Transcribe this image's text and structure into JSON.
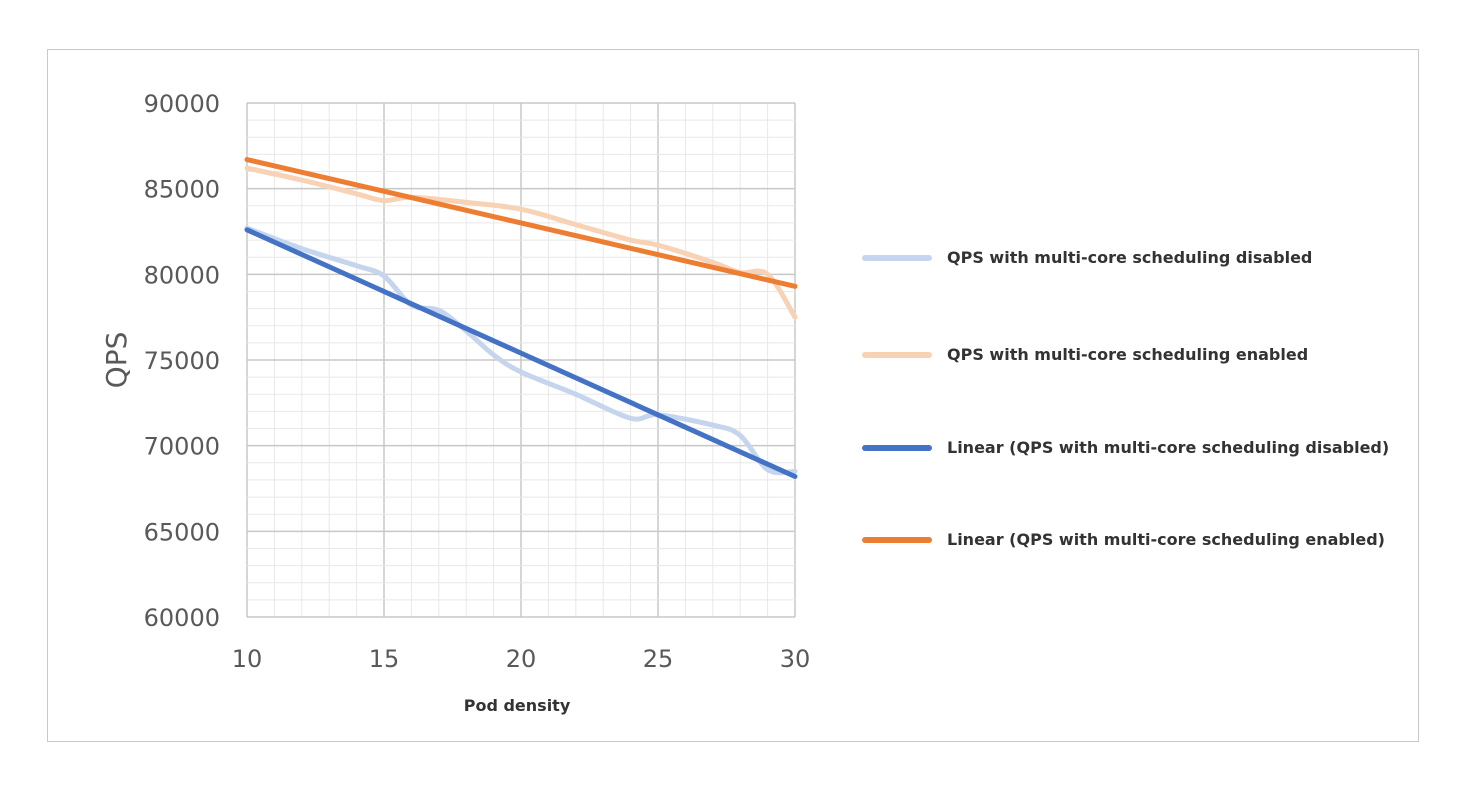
{
  "chart_data": {
    "type": "line",
    "title": "",
    "xlabel": "Pod density",
    "ylabel": "QPS",
    "xlim": [
      10,
      30
    ],
    "ylim": [
      60000,
      90000
    ],
    "x_ticks": [
      "10",
      "15",
      "20",
      "25",
      "30"
    ],
    "y_ticks": [
      "60000",
      "65000",
      "70000",
      "75000",
      "80000",
      "85000",
      "90000"
    ],
    "grid": true,
    "minor_grid": true,
    "legend_position": "right",
    "series": [
      {
        "name": "QPS with multi-core scheduling disabled",
        "color": "#c5d5ee",
        "x": [
          10,
          12,
          14,
          15,
          16,
          17,
          18,
          19,
          20,
          22,
          24,
          25,
          27,
          28,
          29,
          30
        ],
        "y": [
          82700,
          81500,
          80500,
          79900,
          78200,
          77900,
          76700,
          75300,
          74300,
          73000,
          71600,
          71800,
          71200,
          70600,
          68600,
          68500
        ]
      },
      {
        "name": "QPS with multi-core scheduling enabled",
        "color": "#f8d2b5",
        "x": [
          10,
          12,
          14,
          15,
          16,
          18,
          20,
          22,
          24,
          25,
          27,
          28,
          29,
          30
        ],
        "y": [
          86200,
          85500,
          84700,
          84300,
          84500,
          84200,
          83800,
          82900,
          82000,
          81700,
          80700,
          80100,
          80000,
          77500
        ]
      },
      {
        "name": "Linear (QPS with multi-core scheduling disabled)",
        "color": "#4472c4",
        "x": [
          10,
          30
        ],
        "y": [
          82600,
          68200
        ]
      },
      {
        "name": "Linear (QPS with multi-core scheduling enabled)",
        "color": "#ed7d31",
        "x": [
          10,
          30
        ],
        "y": [
          86700,
          79300
        ]
      }
    ]
  }
}
